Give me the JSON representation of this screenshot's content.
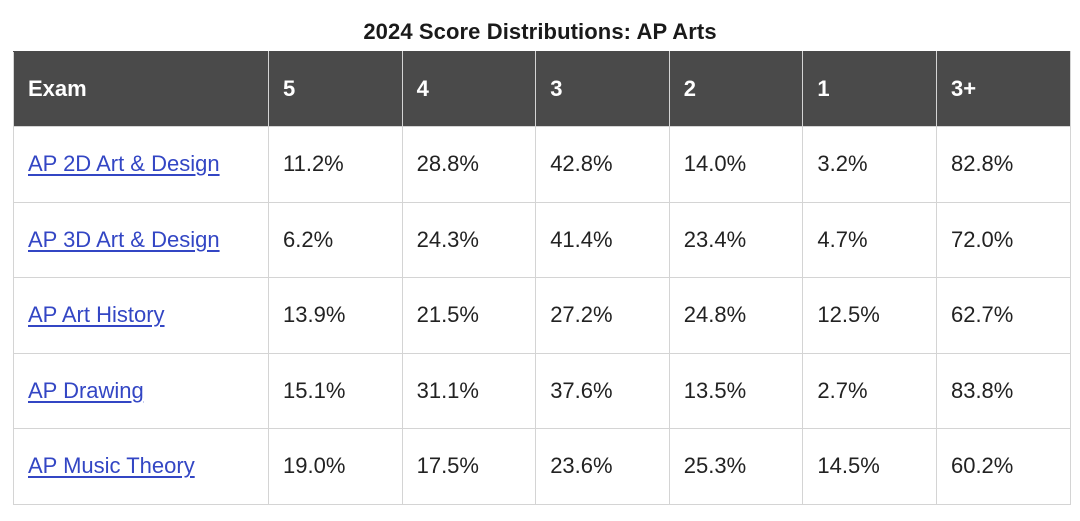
{
  "title": "2024 Score Distributions: AP Arts",
  "table": {
    "headers": [
      "Exam",
      "5",
      "4",
      "3",
      "2",
      "1",
      "3+"
    ],
    "rows": [
      {
        "exam": "AP 2D Art & Design",
        "cells": [
          "11.2%",
          "28.8%",
          "42.8%",
          "14.0%",
          "3.2%",
          "82.8%"
        ]
      },
      {
        "exam": "AP 3D Art & Design",
        "cells": [
          "6.2%",
          "24.3%",
          "41.4%",
          "23.4%",
          "4.7%",
          "72.0%"
        ]
      },
      {
        "exam": "AP Art History",
        "cells": [
          "13.9%",
          "21.5%",
          "27.2%",
          "24.8%",
          "12.5%",
          "62.7%"
        ]
      },
      {
        "exam": "AP Drawing",
        "cells": [
          "15.1%",
          "31.1%",
          "37.6%",
          "13.5%",
          "2.7%",
          "83.8%"
        ]
      },
      {
        "exam": "AP Music Theory",
        "cells": [
          "19.0%",
          "17.5%",
          "23.6%",
          "25.3%",
          "14.5%",
          "60.2%"
        ]
      }
    ]
  },
  "colors": {
    "header_bg": "#4a4a4a",
    "link": "#3346c4",
    "border": "#d4d4d4"
  }
}
